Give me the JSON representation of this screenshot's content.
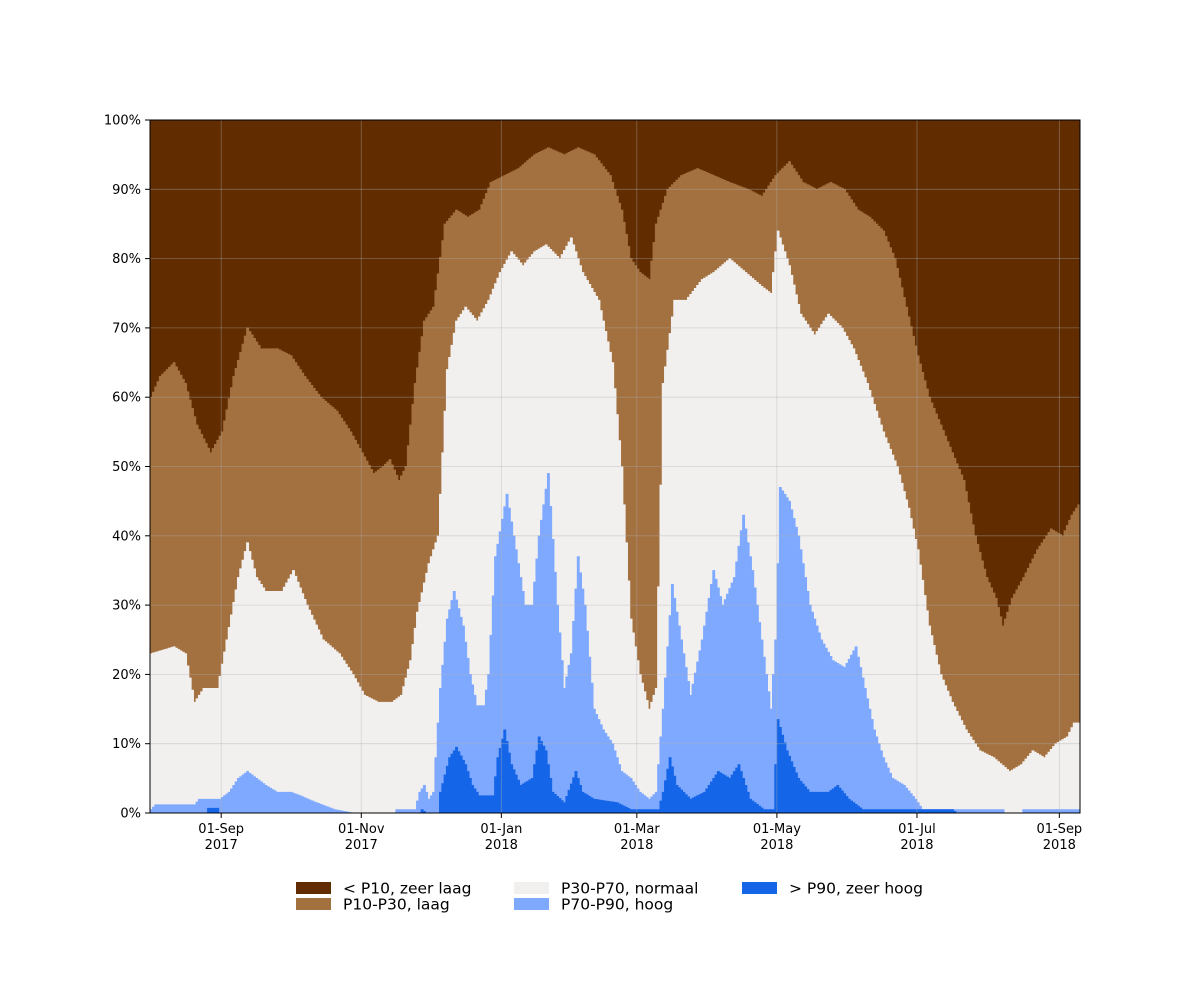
{
  "chart_data": {
    "type": "area",
    "stacked": true,
    "normalized_percent": true,
    "x_type": "date",
    "x_start": "2017-08-01",
    "x_end": "2018-09-10",
    "ylim": [
      0,
      100
    ],
    "grid": true,
    "legend_position": "bottom-center",
    "y_ticks": [
      "0%",
      "10%",
      "20%",
      "30%",
      "40%",
      "50%",
      "60%",
      "70%",
      "80%",
      "90%",
      "100%"
    ],
    "x_ticks": [
      {
        "date": "2017-09-01",
        "line1": "01-Sep",
        "line2": "2017"
      },
      {
        "date": "2017-11-01",
        "line1": "01-Nov",
        "line2": "2017"
      },
      {
        "date": "2018-01-01",
        "line1": "01-Jan",
        "line2": "2018"
      },
      {
        "date": "2018-03-01",
        "line1": "01-Mar",
        "line2": "2018"
      },
      {
        "date": "2018-05-01",
        "line1": "01-May",
        "line2": "2018"
      },
      {
        "date": "2018-07-01",
        "line1": "01-Jul",
        "line2": "2018"
      },
      {
        "date": "2018-09-01",
        "line1": "01-Sep",
        "line2": "2018"
      }
    ],
    "series": [
      {
        "name": "> P90, zeer hoog",
        "color": "#1565e8"
      },
      {
        "name": "P70-P90, hoog",
        "color": "#7ea9ff"
      },
      {
        "name": "P30-P70, normaal",
        "color": "#f2f0ef"
      },
      {
        "name": "P10-P30, laag",
        "color": "#a3703f"
      },
      {
        "name": "< P10, zeer laag",
        "color": "#602c00"
      }
    ],
    "legend_order": [
      "< P10, zeer laag",
      "P10-P30, laag",
      "P30-P70, normaal",
      "P70-P90, hoog",
      "> P90, zeer hoog"
    ],
    "cumulative_boundaries": {
      "p90_top": [
        [
          "2017-08-01",
          0
        ],
        [
          "2017-08-25",
          0
        ],
        [
          "2017-08-26",
          0.7
        ],
        [
          "2017-08-30",
          0.7
        ],
        [
          "2017-08-31",
          0
        ],
        [
          "2017-11-26",
          0
        ],
        [
          "2017-11-27",
          0.5
        ],
        [
          "2017-11-29",
          0
        ],
        [
          "2017-12-04",
          0
        ],
        [
          "2017-12-05",
          3
        ],
        [
          "2017-12-09",
          8
        ],
        [
          "2017-12-12",
          9.5
        ],
        [
          "2017-12-16",
          7
        ],
        [
          "2017-12-19",
          4
        ],
        [
          "2017-12-22",
          2.5
        ],
        [
          "2017-12-28",
          2.5
        ],
        [
          "2017-12-30",
          8
        ],
        [
          "2018-01-02",
          12
        ],
        [
          "2018-01-05",
          7
        ],
        [
          "2018-01-09",
          4
        ],
        [
          "2018-01-14",
          5
        ],
        [
          "2018-01-17",
          11
        ],
        [
          "2018-01-20",
          9
        ],
        [
          "2018-01-23",
          3
        ],
        [
          "2018-01-28",
          1.5
        ],
        [
          "2018-02-02",
          6
        ],
        [
          "2018-02-05",
          3
        ],
        [
          "2018-02-10",
          2
        ],
        [
          "2018-02-20",
          1.5
        ],
        [
          "2018-02-26",
          0.5
        ],
        [
          "2018-03-10",
          0.5
        ],
        [
          "2018-03-12",
          3
        ],
        [
          "2018-03-15",
          8
        ],
        [
          "2018-03-18",
          4
        ],
        [
          "2018-03-24",
          2
        ],
        [
          "2018-03-30",
          3
        ],
        [
          "2018-04-05",
          6
        ],
        [
          "2018-04-10",
          5
        ],
        [
          "2018-04-14",
          7
        ],
        [
          "2018-04-19",
          2
        ],
        [
          "2018-04-25",
          0.5
        ],
        [
          "2018-04-29",
          0.5
        ],
        [
          "2018-05-01",
          13.5
        ],
        [
          "2018-05-05",
          9
        ],
        [
          "2018-05-10",
          5
        ],
        [
          "2018-05-15",
          3
        ],
        [
          "2018-05-23",
          3
        ],
        [
          "2018-05-27",
          4
        ],
        [
          "2018-06-01",
          2
        ],
        [
          "2018-06-07",
          0.5
        ],
        [
          "2018-06-30",
          0.5
        ],
        [
          "2018-07-01",
          0.5
        ],
        [
          "2018-07-16",
          0.5
        ],
        [
          "2018-07-18",
          0
        ],
        [
          "2018-09-10",
          0
        ]
      ],
      "p70_top": [
        [
          "2017-08-01",
          0.5
        ],
        [
          "2017-08-03",
          1.2
        ],
        [
          "2017-08-20",
          1.2
        ],
        [
          "2017-08-22",
          2
        ],
        [
          "2017-08-31",
          2
        ],
        [
          "2017-09-04",
          3
        ],
        [
          "2017-09-08",
          5
        ],
        [
          "2017-09-12",
          6
        ],
        [
          "2017-09-16",
          5
        ],
        [
          "2017-09-20",
          4
        ],
        [
          "2017-09-25",
          3
        ],
        [
          "2017-10-01",
          3
        ],
        [
          "2017-10-05",
          2.5
        ],
        [
          "2017-10-12",
          1.5
        ],
        [
          "2017-10-20",
          0.5
        ],
        [
          "2017-10-28",
          0
        ],
        [
          "2017-11-15",
          0
        ],
        [
          "2017-11-16",
          0.5
        ],
        [
          "2017-11-24",
          0.5
        ],
        [
          "2017-11-26",
          3
        ],
        [
          "2017-11-28",
          4
        ],
        [
          "2017-11-30",
          2
        ],
        [
          "2017-12-02",
          3
        ],
        [
          "2017-12-05",
          18
        ],
        [
          "2017-12-08",
          28
        ],
        [
          "2017-12-11",
          32
        ],
        [
          "2017-12-15",
          27
        ],
        [
          "2017-12-18",
          20
        ],
        [
          "2017-12-21",
          15.5
        ],
        [
          "2017-12-24",
          15.5
        ],
        [
          "2017-12-26",
          20
        ],
        [
          "2017-12-29",
          37
        ],
        [
          "2018-01-03",
          46
        ],
        [
          "2018-01-07",
          38
        ],
        [
          "2018-01-11",
          30
        ],
        [
          "2018-01-14",
          30
        ],
        [
          "2018-01-17",
          40
        ],
        [
          "2018-01-21",
          49
        ],
        [
          "2018-01-25",
          30
        ],
        [
          "2018-01-28",
          18
        ],
        [
          "2018-01-31",
          23
        ],
        [
          "2018-02-03",
          37
        ],
        [
          "2018-02-06",
          30
        ],
        [
          "2018-02-10",
          15
        ],
        [
          "2018-02-14",
          12
        ],
        [
          "2018-02-18",
          10
        ],
        [
          "2018-02-22",
          6
        ],
        [
          "2018-02-26",
          5
        ],
        [
          "2018-03-02",
          3
        ],
        [
          "2018-03-06",
          2
        ],
        [
          "2018-03-09",
          3
        ],
        [
          "2018-03-12",
          15
        ],
        [
          "2018-03-16",
          33
        ],
        [
          "2018-03-20",
          25
        ],
        [
          "2018-03-24",
          17
        ],
        [
          "2018-03-29",
          25
        ],
        [
          "2018-04-03",
          35
        ],
        [
          "2018-04-07",
          30
        ],
        [
          "2018-04-12",
          34
        ],
        [
          "2018-04-16",
          43
        ],
        [
          "2018-04-20",
          35
        ],
        [
          "2018-04-24",
          25
        ],
        [
          "2018-04-28",
          15
        ],
        [
          "2018-04-30",
          25
        ],
        [
          "2018-05-02",
          47
        ],
        [
          "2018-05-06",
          45
        ],
        [
          "2018-05-10",
          40
        ],
        [
          "2018-05-15",
          30
        ],
        [
          "2018-05-20",
          25
        ],
        [
          "2018-05-25",
          22
        ],
        [
          "2018-05-30",
          21
        ],
        [
          "2018-06-04",
          24
        ],
        [
          "2018-06-08",
          18
        ],
        [
          "2018-06-12",
          12
        ],
        [
          "2018-06-16",
          8
        ],
        [
          "2018-06-20",
          5
        ],
        [
          "2018-06-25",
          4
        ],
        [
          "2018-06-30",
          2
        ],
        [
          "2018-07-03",
          0.5
        ],
        [
          "2018-08-07",
          0.5
        ],
        [
          "2018-08-08",
          0
        ],
        [
          "2018-08-15",
          0
        ],
        [
          "2018-08-16",
          0.5
        ],
        [
          "2018-09-10",
          0.5
        ]
      ],
      "p30_top": [
        [
          "2017-08-01",
          23
        ],
        [
          "2017-08-11",
          24
        ],
        [
          "2017-08-16",
          23
        ],
        [
          "2017-08-20",
          16
        ],
        [
          "2017-08-24",
          18
        ],
        [
          "2017-08-30",
          18
        ],
        [
          "2017-09-03",
          25
        ],
        [
          "2017-09-08",
          34
        ],
        [
          "2017-09-12",
          39
        ],
        [
          "2017-09-16",
          34
        ],
        [
          "2017-09-20",
          32
        ],
        [
          "2017-09-27",
          32
        ],
        [
          "2017-10-02",
          35
        ],
        [
          "2017-10-08",
          30
        ],
        [
          "2017-10-15",
          25
        ],
        [
          "2017-10-22",
          23
        ],
        [
          "2017-10-28",
          20
        ],
        [
          "2017-11-02",
          17
        ],
        [
          "2017-11-08",
          16
        ],
        [
          "2017-11-14",
          16
        ],
        [
          "2017-11-18",
          17
        ],
        [
          "2017-11-22",
          22
        ],
        [
          "2017-11-25",
          29
        ],
        [
          "2017-11-30",
          36
        ],
        [
          "2017-12-04",
          40
        ],
        [
          "2017-12-08",
          64
        ],
        [
          "2017-12-12",
          71
        ],
        [
          "2017-12-16",
          73
        ],
        [
          "2017-12-21",
          71
        ],
        [
          "2017-12-26",
          74
        ],
        [
          "2017-12-31",
          78
        ],
        [
          "2018-01-05",
          81
        ],
        [
          "2018-01-10",
          79
        ],
        [
          "2018-01-15",
          81
        ],
        [
          "2018-01-20",
          82
        ],
        [
          "2018-01-26",
          80
        ],
        [
          "2018-01-31",
          83
        ],
        [
          "2018-02-05",
          78
        ],
        [
          "2018-02-12",
          74
        ],
        [
          "2018-02-18",
          65
        ],
        [
          "2018-02-22",
          50
        ],
        [
          "2018-02-26",
          28
        ],
        [
          "2018-03-02",
          20
        ],
        [
          "2018-03-06",
          15
        ],
        [
          "2018-03-09",
          18
        ],
        [
          "2018-03-12",
          62
        ],
        [
          "2018-03-17",
          74
        ],
        [
          "2018-03-22",
          74
        ],
        [
          "2018-03-29",
          77
        ],
        [
          "2018-04-03",
          78
        ],
        [
          "2018-04-10",
          80
        ],
        [
          "2018-04-17",
          78
        ],
        [
          "2018-04-24",
          76
        ],
        [
          "2018-04-28",
          75
        ],
        [
          "2018-05-01",
          84
        ],
        [
          "2018-05-06",
          79
        ],
        [
          "2018-05-11",
          72
        ],
        [
          "2018-05-17",
          69
        ],
        [
          "2018-05-23",
          72
        ],
        [
          "2018-05-29",
          70
        ],
        [
          "2018-06-03",
          67
        ],
        [
          "2018-06-09",
          62
        ],
        [
          "2018-06-16",
          55
        ],
        [
          "2018-06-22",
          50
        ],
        [
          "2018-06-27",
          44
        ],
        [
          "2018-07-01",
          38
        ],
        [
          "2018-07-06",
          27
        ],
        [
          "2018-07-11",
          20
        ],
        [
          "2018-07-16",
          16
        ],
        [
          "2018-07-22",
          12
        ],
        [
          "2018-07-28",
          9
        ],
        [
          "2018-08-03",
          8
        ],
        [
          "2018-08-10",
          6
        ],
        [
          "2018-08-15",
          7
        ],
        [
          "2018-08-20",
          9
        ],
        [
          "2018-08-25",
          8
        ],
        [
          "2018-08-30",
          10
        ],
        [
          "2018-09-04",
          11
        ],
        [
          "2018-09-07",
          13
        ],
        [
          "2018-09-10",
          13
        ]
      ],
      "p10_top": [
        [
          "2017-08-01",
          60
        ],
        [
          "2017-08-05",
          63
        ],
        [
          "2017-08-11",
          65
        ],
        [
          "2017-08-16",
          62
        ],
        [
          "2017-08-21",
          56
        ],
        [
          "2017-08-27",
          52
        ],
        [
          "2017-09-01",
          55
        ],
        [
          "2017-09-06",
          63
        ],
        [
          "2017-09-12",
          70
        ],
        [
          "2017-09-18",
          67
        ],
        [
          "2017-09-25",
          67
        ],
        [
          "2017-10-01",
          66
        ],
        [
          "2017-10-07",
          63
        ],
        [
          "2017-10-14",
          60
        ],
        [
          "2017-10-21",
          58
        ],
        [
          "2017-10-27",
          55
        ],
        [
          "2017-11-01",
          52
        ],
        [
          "2017-11-06",
          49
        ],
        [
          "2017-11-10",
          50
        ],
        [
          "2017-11-13",
          51
        ],
        [
          "2017-11-17",
          48
        ],
        [
          "2017-11-20",
          50
        ],
        [
          "2017-11-24",
          62
        ],
        [
          "2017-11-28",
          71
        ],
        [
          "2017-12-02",
          73
        ],
        [
          "2017-12-07",
          85
        ],
        [
          "2017-12-12",
          87
        ],
        [
          "2017-12-17",
          86
        ],
        [
          "2017-12-22",
          87
        ],
        [
          "2017-12-27",
          91
        ],
        [
          "2018-01-02",
          92
        ],
        [
          "2018-01-08",
          93
        ],
        [
          "2018-01-15",
          95
        ],
        [
          "2018-01-21",
          96
        ],
        [
          "2018-01-28",
          95
        ],
        [
          "2018-02-03",
          96
        ],
        [
          "2018-02-10",
          95
        ],
        [
          "2018-02-17",
          92
        ],
        [
          "2018-02-22",
          87
        ],
        [
          "2018-02-26",
          80
        ],
        [
          "2018-03-02",
          78
        ],
        [
          "2018-03-06",
          77
        ],
        [
          "2018-03-09",
          85
        ],
        [
          "2018-03-14",
          90
        ],
        [
          "2018-03-20",
          92
        ],
        [
          "2018-03-27",
          93
        ],
        [
          "2018-04-03",
          92
        ],
        [
          "2018-04-10",
          91
        ],
        [
          "2018-04-18",
          90
        ],
        [
          "2018-04-24",
          89
        ],
        [
          "2018-04-30",
          92
        ],
        [
          "2018-05-06",
          94
        ],
        [
          "2018-05-12",
          91
        ],
        [
          "2018-05-18",
          90
        ],
        [
          "2018-05-24",
          91
        ],
        [
          "2018-05-30",
          90
        ],
        [
          "2018-06-05",
          87
        ],
        [
          "2018-06-10",
          86
        ],
        [
          "2018-06-16",
          84
        ],
        [
          "2018-06-21",
          80
        ],
        [
          "2018-06-26",
          73
        ],
        [
          "2018-07-01",
          66
        ],
        [
          "2018-07-06",
          60
        ],
        [
          "2018-07-11",
          56
        ],
        [
          "2018-07-16",
          52
        ],
        [
          "2018-07-21",
          48
        ],
        [
          "2018-07-26",
          40
        ],
        [
          "2018-07-31",
          34
        ],
        [
          "2018-08-04",
          31
        ],
        [
          "2018-08-07",
          27
        ],
        [
          "2018-08-11",
          31
        ],
        [
          "2018-08-16",
          34
        ],
        [
          "2018-08-22",
          38
        ],
        [
          "2018-08-28",
          41
        ],
        [
          "2018-09-02",
          40
        ],
        [
          "2018-09-06",
          43
        ],
        [
          "2018-09-10",
          45
        ]
      ]
    }
  }
}
